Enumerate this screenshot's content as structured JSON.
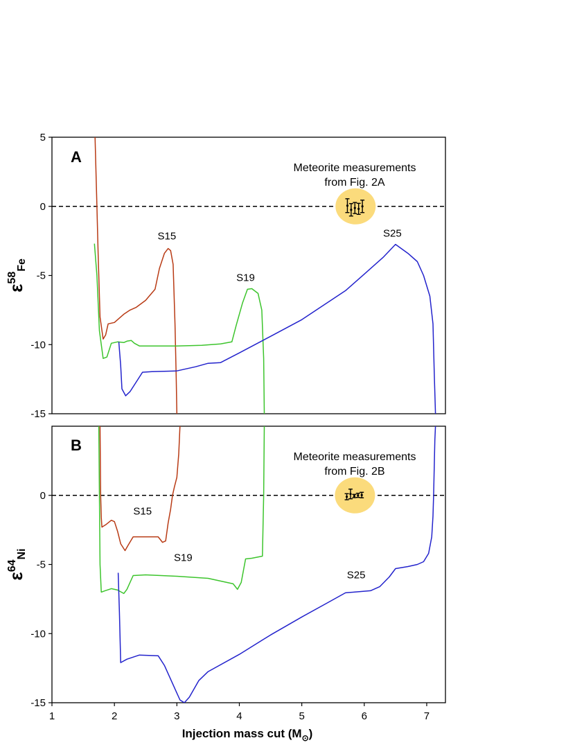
{
  "figure": {
    "xlabel": "Injection mass cut (M",
    "xlabel_sub": "⊙",
    "xlabel_end": ")",
    "x_ticks": [
      "1",
      "2",
      "3",
      "4",
      "5",
      "6",
      "7"
    ]
  },
  "chart_data": [
    {
      "type": "line",
      "panel_label": "A",
      "ylabel": "ε",
      "ylabel_sup": "58",
      "ylabel_sub": "Fe",
      "xlim": [
        1,
        7.3
      ],
      "ylim": [
        -15,
        5
      ],
      "y_ticks": [
        "5",
        "0",
        "-5",
        "-10",
        "-15"
      ],
      "reference_line": 0,
      "annotation": [
        "Meteorite measurements",
        "from Fig. 2A"
      ],
      "series": [
        {
          "name": "S15",
          "color": "#b83a14",
          "label_at": [
            2.84,
            -2.4
          ],
          "points": [
            [
              1.69,
              5
            ],
            [
              1.72,
              0
            ],
            [
              1.74,
              -3.5
            ],
            [
              1.77,
              -8
            ],
            [
              1.82,
              -9.6
            ],
            [
              1.86,
              -9.3
            ],
            [
              1.9,
              -8.5
            ],
            [
              2.0,
              -8.4
            ],
            [
              2.05,
              -8.2
            ],
            [
              2.15,
              -7.8
            ],
            [
              2.25,
              -7.5
            ],
            [
              2.35,
              -7.3
            ],
            [
              2.5,
              -6.8
            ],
            [
              2.65,
              -6.0
            ],
            [
              2.72,
              -4.5
            ],
            [
              2.8,
              -3.4
            ],
            [
              2.86,
              -3.05
            ],
            [
              2.9,
              -3.2
            ],
            [
              2.94,
              -4.2
            ],
            [
              2.97,
              -8.5
            ],
            [
              2.99,
              -12.5
            ],
            [
              3.0,
              -15
            ]
          ]
        },
        {
          "name": "S19",
          "color": "#3cc42c",
          "label_at": [
            4.1,
            -5.4
          ],
          "points": [
            [
              1.68,
              -2.7
            ],
            [
              1.72,
              -5
            ],
            [
              1.76,
              -9
            ],
            [
              1.82,
              -11
            ],
            [
              1.88,
              -10.9
            ],
            [
              1.95,
              -9.9
            ],
            [
              2.05,
              -9.8
            ],
            [
              2.15,
              -9.85
            ],
            [
              2.2,
              -9.75
            ],
            [
              2.27,
              -9.7
            ],
            [
              2.32,
              -9.9
            ],
            [
              2.4,
              -10.1
            ],
            [
              2.6,
              -10.1
            ],
            [
              3.0,
              -10.1
            ],
            [
              3.4,
              -10.05
            ],
            [
              3.7,
              -9.95
            ],
            [
              3.88,
              -9.8
            ],
            [
              3.95,
              -8.6
            ],
            [
              4.05,
              -7.0
            ],
            [
              4.13,
              -6.0
            ],
            [
              4.2,
              -5.95
            ],
            [
              4.3,
              -6.3
            ],
            [
              4.36,
              -7.5
            ],
            [
              4.39,
              -11
            ],
            [
              4.4,
              -15
            ]
          ]
        },
        {
          "name": "S25",
          "color": "#2222cc",
          "label_at": [
            6.45,
            -2.2
          ],
          "points": [
            [
              2.07,
              -9.8
            ],
            [
              2.1,
              -11.5
            ],
            [
              2.12,
              -13.2
            ],
            [
              2.18,
              -13.7
            ],
            [
              2.25,
              -13.4
            ],
            [
              2.35,
              -12.7
            ],
            [
              2.45,
              -12.0
            ],
            [
              2.6,
              -11.95
            ],
            [
              3.0,
              -11.9
            ],
            [
              3.3,
              -11.6
            ],
            [
              3.5,
              -11.35
            ],
            [
              3.7,
              -11.3
            ],
            [
              4.0,
              -10.6
            ],
            [
              4.5,
              -9.4
            ],
            [
              5.0,
              -8.2
            ],
            [
              5.7,
              -6.1
            ],
            [
              6.0,
              -4.9
            ],
            [
              6.3,
              -3.7
            ],
            [
              6.5,
              -2.75
            ],
            [
              6.7,
              -3.4
            ],
            [
              6.85,
              -4.0
            ],
            [
              6.95,
              -5.0
            ],
            [
              7.05,
              -6.5
            ],
            [
              7.1,
              -8.5
            ],
            [
              7.12,
              -12
            ],
            [
              7.14,
              -15
            ]
          ]
        }
      ],
      "meteorite_points": [
        {
          "x": 5.73,
          "y": 0.05,
          "err": 0.5
        },
        {
          "x": 5.79,
          "y": -0.25,
          "err": 0.45
        },
        {
          "x": 5.85,
          "y": -0.12,
          "err": 0.4
        },
        {
          "x": 5.91,
          "y": -0.18,
          "err": 0.4
        },
        {
          "x": 5.97,
          "y": 0.0,
          "err": 0.45
        }
      ]
    },
    {
      "type": "line",
      "panel_label": "B",
      "ylabel": "ε",
      "ylabel_sup": "64",
      "ylabel_sub": "Ni",
      "xlim": [
        1,
        7.3
      ],
      "ylim": [
        -15,
        5
      ],
      "y_ticks": [
        "0",
        "-5",
        "-10",
        "-15"
      ],
      "reference_line": 0,
      "annotation": [
        "Meteorite measurements",
        "from Fig. 2B"
      ],
      "series": [
        {
          "name": "S15",
          "color": "#b83a14",
          "label_at": [
            2.45,
            -1.4
          ],
          "points": [
            [
              1.77,
              5
            ],
            [
              1.78,
              0
            ],
            [
              1.79,
              -1.6
            ],
            [
              1.8,
              -2.3
            ],
            [
              1.87,
              -2.1
            ],
            [
              1.95,
              -1.8
            ],
            [
              2.0,
              -1.9
            ],
            [
              2.05,
              -2.6
            ],
            [
              2.1,
              -3.5
            ],
            [
              2.17,
              -4.0
            ],
            [
              2.22,
              -3.6
            ],
            [
              2.3,
              -3.0
            ],
            [
              2.5,
              -3.0
            ],
            [
              2.7,
              -3.0
            ],
            [
              2.77,
              -3.4
            ],
            [
              2.82,
              -3.3
            ],
            [
              2.86,
              -2.0
            ],
            [
              2.9,
              -1.0
            ],
            [
              2.93,
              0.0
            ],
            [
              2.96,
              0.6
            ],
            [
              3.0,
              1.3
            ],
            [
              3.03,
              3.0
            ],
            [
              3.05,
              5
            ]
          ]
        },
        {
          "name": "S19",
          "color": "#3cc42c",
          "label_at": [
            3.1,
            -4.75
          ],
          "points": [
            [
              1.75,
              5
            ],
            [
              1.76,
              0
            ],
            [
              1.77,
              -5
            ],
            [
              1.79,
              -7.0
            ],
            [
              1.85,
              -6.9
            ],
            [
              1.95,
              -6.75
            ],
            [
              2.05,
              -6.85
            ],
            [
              2.15,
              -7.1
            ],
            [
              2.2,
              -6.8
            ],
            [
              2.3,
              -5.8
            ],
            [
              2.5,
              -5.75
            ],
            [
              3.0,
              -5.85
            ],
            [
              3.5,
              -6.0
            ],
            [
              3.9,
              -6.4
            ],
            [
              3.97,
              -6.8
            ],
            [
              4.03,
              -6.3
            ],
            [
              4.1,
              -4.6
            ],
            [
              4.2,
              -4.55
            ],
            [
              4.37,
              -4.4
            ],
            [
              4.39,
              0
            ],
            [
              4.4,
              5
            ]
          ]
        },
        {
          "name": "S25",
          "color": "#2222cc",
          "label_at": [
            5.87,
            -6.0
          ],
          "points": [
            [
              2.06,
              -5.6
            ],
            [
              2.08,
              -8.5
            ],
            [
              2.1,
              -12.1
            ],
            [
              2.2,
              -11.85
            ],
            [
              2.3,
              -11.7
            ],
            [
              2.4,
              -11.55
            ],
            [
              2.7,
              -11.6
            ],
            [
              2.8,
              -12.3
            ],
            [
              2.95,
              -13.8
            ],
            [
              3.05,
              -14.8
            ],
            [
              3.12,
              -15.0
            ],
            [
              3.2,
              -14.6
            ],
            [
              3.35,
              -13.4
            ],
            [
              3.5,
              -12.75
            ],
            [
              4.0,
              -11.5
            ],
            [
              4.5,
              -10.1
            ],
            [
              5.0,
              -8.8
            ],
            [
              5.4,
              -7.8
            ],
            [
              5.7,
              -7.05
            ],
            [
              6.1,
              -6.9
            ],
            [
              6.25,
              -6.6
            ],
            [
              6.4,
              -5.9
            ],
            [
              6.5,
              -5.3
            ],
            [
              6.7,
              -5.15
            ],
            [
              6.85,
              -5.0
            ],
            [
              6.95,
              -4.8
            ],
            [
              7.03,
              -4.2
            ],
            [
              7.08,
              -3.0
            ],
            [
              7.1,
              -1.5
            ],
            [
              7.11,
              0
            ],
            [
              7.12,
              2
            ],
            [
              7.13,
              4
            ],
            [
              7.14,
              5
            ]
          ]
        }
      ],
      "meteorite_points": [
        {
          "x": 5.72,
          "y": -0.1,
          "err": 0.22
        },
        {
          "x": 5.78,
          "y": 0.1,
          "err": 0.35
        },
        {
          "x": 5.84,
          "y": -0.05,
          "err": 0.12
        },
        {
          "x": 5.9,
          "y": 0.0,
          "err": 0.15
        },
        {
          "x": 5.96,
          "y": 0.02,
          "err": 0.2
        }
      ]
    }
  ]
}
